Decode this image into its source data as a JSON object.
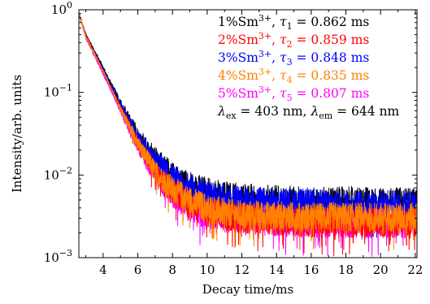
{
  "chart_data": {
    "type": "line",
    "x_axis": {
      "label": "Decay time/ms",
      "range": [
        2.6,
        22.1
      ],
      "ticks": [
        4,
        6,
        8,
        10,
        12,
        14,
        16,
        18,
        20,
        22
      ],
      "tick_labels": [
        "4",
        "6",
        "8",
        "10",
        "12",
        "14",
        "16",
        "18",
        "20",
        "22"
      ],
      "minor_step": 1
    },
    "y_axis": {
      "label": "Intensity/arb. units",
      "scale": "log",
      "range": [
        0.001,
        1
      ],
      "ticks": [
        {
          "value": 1,
          "base": "10",
          "exp": "0"
        },
        {
          "value": 0.1,
          "base": "10",
          "exp": "−1"
        },
        {
          "value": 0.01,
          "base": "10",
          "exp": "−2"
        },
        {
          "value": 0.001,
          "base": "10",
          "exp": "−3"
        }
      ]
    },
    "grid": false,
    "legend_position": "top-right",
    "series": [
      {
        "name": "1%Sm³⁺, τ₁ = 0.862 ms",
        "legend": {
          "conc": "1%Sm",
          "sup": "3+",
          "sub": "1",
          "value": "0.862 ms"
        },
        "color": "#000000",
        "tau": 0.862,
        "initial": 0.9,
        "baseline": 0.0047,
        "x": [
          2.6,
          3,
          4,
          5,
          6,
          7,
          8,
          9,
          10,
          11,
          12,
          14,
          16,
          18,
          20,
          22
        ],
        "y": [
          0.9,
          0.5,
          0.2,
          0.075,
          0.03,
          0.016,
          0.01,
          0.0075,
          0.0062,
          0.0056,
          0.0052,
          0.005,
          0.0048,
          0.0048,
          0.0047,
          0.0047
        ]
      },
      {
        "name": "2%Sm³⁺, τ₂ = 0.859 ms",
        "legend": {
          "conc": "2%Sm",
          "sup": "3+",
          "sub": "2",
          "value": "0.859 ms"
        },
        "color": "#ff0000",
        "tau": 0.859,
        "initial": 0.9,
        "baseline": 0.0027,
        "x": [
          2.6,
          3,
          4,
          5,
          6,
          7,
          8,
          9,
          10,
          11,
          12,
          14,
          16,
          18,
          20,
          22
        ],
        "y": [
          0.9,
          0.48,
          0.18,
          0.065,
          0.025,
          0.011,
          0.0065,
          0.0045,
          0.0036,
          0.0032,
          0.003,
          0.0028,
          0.0027,
          0.0027,
          0.0027,
          0.0027
        ]
      },
      {
        "name": "3%Sm³⁺, τ₃ = 0.848 ms",
        "legend": {
          "conc": "3%Sm",
          "sup": "3+",
          "sub": "3",
          "value": "0.848 ms"
        },
        "color": "#0000ff",
        "tau": 0.848,
        "initial": 0.9,
        "baseline": 0.0044,
        "x": [
          2.6,
          3,
          4,
          5,
          6,
          7,
          8,
          9,
          10,
          11,
          12,
          14,
          16,
          18,
          20,
          22
        ],
        "y": [
          0.9,
          0.49,
          0.19,
          0.07,
          0.028,
          0.015,
          0.0092,
          0.007,
          0.0058,
          0.0052,
          0.0048,
          0.0046,
          0.0045,
          0.0044,
          0.0044,
          0.0044
        ]
      },
      {
        "name": "4%Sm³⁺, τ₄ = 0.835 ms",
        "legend": {
          "conc": "4%Sm",
          "sup": "3+",
          "sub": "4",
          "value": "0.835 ms"
        },
        "color": "#ff8000",
        "tau": 0.835,
        "initial": 0.9,
        "baseline": 0.0031,
        "x": [
          2.6,
          3,
          4,
          5,
          6,
          7,
          8,
          9,
          10,
          11,
          12,
          14,
          16,
          18,
          20,
          22
        ],
        "y": [
          0.9,
          0.47,
          0.18,
          0.063,
          0.024,
          0.011,
          0.0068,
          0.0049,
          0.004,
          0.0035,
          0.0033,
          0.0032,
          0.0031,
          0.0031,
          0.0031,
          0.0031
        ]
      },
      {
        "name": "5%Sm³⁺, τ₅ = 0.807 ms",
        "legend": {
          "conc": "5%Sm",
          "sup": "3+",
          "sub": "5",
          "value": "0.807 ms"
        },
        "color": "#ff00ff",
        "tau": 0.807,
        "initial": 0.9,
        "baseline": 0.0026,
        "x": [
          2.6,
          3,
          4,
          5,
          6,
          7,
          8,
          9,
          10,
          11,
          12,
          14,
          16,
          18,
          20,
          22
        ],
        "y": [
          0.9,
          0.46,
          0.17,
          0.06,
          0.022,
          0.01,
          0.0058,
          0.0041,
          0.0033,
          0.003,
          0.0028,
          0.0027,
          0.0026,
          0.0026,
          0.0026,
          0.0026
        ]
      }
    ],
    "annotation": {
      "ex_label": "ex",
      "ex_value": "403 nm",
      "em_label": "em",
      "em_value": "644 nm"
    }
  }
}
